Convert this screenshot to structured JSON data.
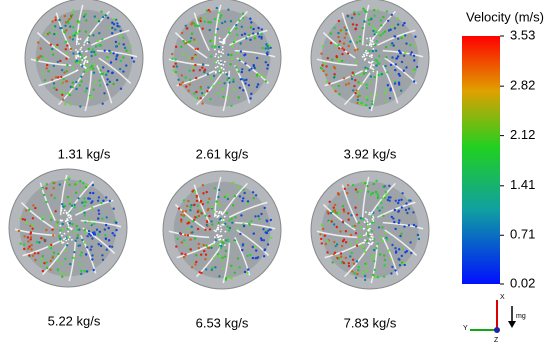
{
  "panels": [
    {
      "label": "1.31 kg/s"
    },
    {
      "label": "2.61 kg/s"
    },
    {
      "label": "3.92 kg/s"
    },
    {
      "label": "5.22 kg/s"
    },
    {
      "label": "6.53 kg/s"
    },
    {
      "label": "7.83 kg/s"
    }
  ],
  "colorbar": {
    "title": "Velocity (m/s)",
    "range": [
      0.02,
      3.53
    ],
    "ticks": [
      3.53,
      2.82,
      2.12,
      1.41,
      0.71,
      0.02
    ]
  },
  "triad": {
    "x": "X",
    "y": "Y",
    "z": "Z",
    "gravity": "mg"
  }
}
